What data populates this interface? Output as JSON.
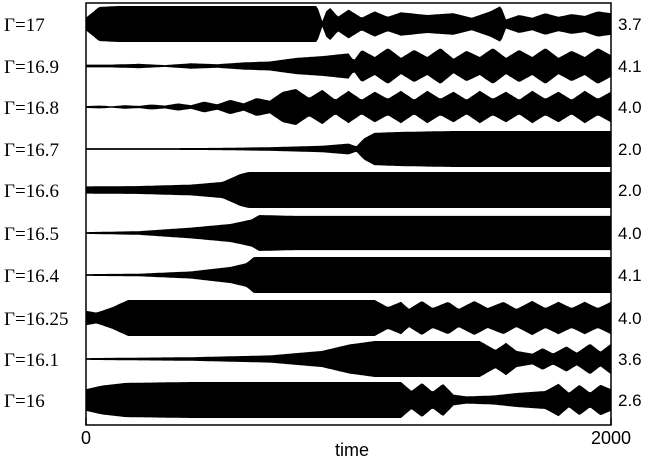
{
  "chart_data": {
    "type": "area",
    "xlabel": "time",
    "x_ticks": [
      "0",
      "2000"
    ],
    "xlim": [
      0,
      2000
    ],
    "grid": false,
    "series": [
      {
        "name": "Γ=17",
        "right_value": "3.7",
        "profile": [
          [
            0,
            0.35
          ],
          [
            50,
            0.95
          ],
          [
            120,
            1
          ],
          [
            300,
            1
          ],
          [
            600,
            1
          ],
          [
            780,
            1
          ],
          [
            880,
            1
          ],
          [
            890,
            0.6
          ],
          [
            900,
            0.15
          ],
          [
            915,
            0.7
          ],
          [
            930,
            0.9
          ],
          [
            960,
            0.4
          ],
          [
            1000,
            0.8
          ],
          [
            1050,
            0.35
          ],
          [
            1100,
            0.7
          ],
          [
            1150,
            0.4
          ],
          [
            1200,
            0.65
          ],
          [
            1300,
            0.5
          ],
          [
            1400,
            0.6
          ],
          [
            1470,
            0.35
          ],
          [
            1540,
            0.7
          ],
          [
            1580,
            1
          ],
          [
            1600,
            0.25
          ],
          [
            1650,
            0.5
          ],
          [
            1700,
            0.35
          ],
          [
            1750,
            0.6
          ],
          [
            1800,
            0.4
          ],
          [
            1850,
            0.55
          ],
          [
            1900,
            0.45
          ],
          [
            1950,
            0.7
          ],
          [
            2000,
            0.6
          ]
        ]
      },
      {
        "name": "Γ=16.9",
        "right_value": "4.1",
        "profile": [
          [
            0,
            0.08
          ],
          [
            100,
            0.08
          ],
          [
            200,
            0.12
          ],
          [
            300,
            0.05
          ],
          [
            400,
            0.15
          ],
          [
            500,
            0.1
          ],
          [
            600,
            0.2
          ],
          [
            700,
            0.25
          ],
          [
            800,
            0.45
          ],
          [
            900,
            0.55
          ],
          [
            1000,
            0.7
          ],
          [
            1020,
            0.3
          ],
          [
            1050,
            0.9
          ],
          [
            1100,
            0.5
          ],
          [
            1150,
            1
          ],
          [
            1200,
            0.45
          ],
          [
            1250,
            0.9
          ],
          [
            1300,
            0.5
          ],
          [
            1350,
            1
          ],
          [
            1400,
            0.4
          ],
          [
            1450,
            0.85
          ],
          [
            1500,
            0.5
          ],
          [
            1550,
            1
          ],
          [
            1600,
            0.45
          ],
          [
            1650,
            0.9
          ],
          [
            1700,
            0.5
          ],
          [
            1750,
            1
          ],
          [
            1800,
            0.45
          ],
          [
            1850,
            0.85
          ],
          [
            1900,
            0.5
          ],
          [
            1950,
            1
          ],
          [
            2000,
            0.6
          ]
        ]
      },
      {
        "name": "Γ=16.8",
        "right_value": "4.0",
        "profile": [
          [
            0,
            0.05
          ],
          [
            50,
            0.08
          ],
          [
            100,
            0.04
          ],
          [
            150,
            0.1
          ],
          [
            200,
            0.06
          ],
          [
            250,
            0.14
          ],
          [
            300,
            0.08
          ],
          [
            350,
            0.2
          ],
          [
            400,
            0.1
          ],
          [
            450,
            0.3
          ],
          [
            500,
            0.15
          ],
          [
            550,
            0.4
          ],
          [
            600,
            0.2
          ],
          [
            650,
            0.5
          ],
          [
            700,
            0.35
          ],
          [
            750,
            0.85
          ],
          [
            800,
            1
          ],
          [
            850,
            0.5
          ],
          [
            900,
            0.95
          ],
          [
            950,
            0.4
          ],
          [
            1000,
            0.9
          ],
          [
            1050,
            0.4
          ],
          [
            1100,
            0.85
          ],
          [
            1150,
            0.45
          ],
          [
            1200,
            0.9
          ],
          [
            1250,
            0.4
          ],
          [
            1300,
            0.9
          ],
          [
            1350,
            0.45
          ],
          [
            1400,
            0.85
          ],
          [
            1450,
            0.4
          ],
          [
            1500,
            0.9
          ],
          [
            1550,
            0.45
          ],
          [
            1600,
            0.85
          ],
          [
            1650,
            0.4
          ],
          [
            1700,
            0.9
          ],
          [
            1750,
            0.45
          ],
          [
            1800,
            0.85
          ],
          [
            1850,
            0.4
          ],
          [
            1900,
            0.9
          ],
          [
            1950,
            0.45
          ],
          [
            2000,
            0.85
          ]
        ]
      },
      {
        "name": "Γ=16.7",
        "right_value": "2.0",
        "profile": [
          [
            0,
            0.05
          ],
          [
            300,
            0.05
          ],
          [
            500,
            0.06
          ],
          [
            700,
            0.1
          ],
          [
            900,
            0.18
          ],
          [
            1000,
            0.3
          ],
          [
            1030,
            0.15
          ],
          [
            1060,
            0.6
          ],
          [
            1100,
            0.9
          ],
          [
            1200,
            0.95
          ],
          [
            1400,
            1
          ],
          [
            1600,
            1
          ],
          [
            1800,
            1
          ],
          [
            2000,
            1
          ]
        ]
      },
      {
        "name": "Γ=16.6",
        "right_value": "2.0",
        "profile": [
          [
            0,
            0.2
          ],
          [
            200,
            0.22
          ],
          [
            400,
            0.3
          ],
          [
            520,
            0.45
          ],
          [
            590,
            0.9
          ],
          [
            620,
            1
          ],
          [
            800,
            1
          ],
          [
            1000,
            1
          ],
          [
            1200,
            1
          ],
          [
            1400,
            1
          ],
          [
            1600,
            1
          ],
          [
            1800,
            1
          ],
          [
            2000,
            1
          ]
        ]
      },
      {
        "name": "Γ=16.5",
        "right_value": "4.0",
        "profile": [
          [
            0,
            0.05
          ],
          [
            200,
            0.1
          ],
          [
            400,
            0.3
          ],
          [
            550,
            0.5
          ],
          [
            630,
            0.75
          ],
          [
            660,
            1
          ],
          [
            800,
            0.95
          ],
          [
            1000,
            0.95
          ],
          [
            1200,
            0.95
          ],
          [
            1400,
            0.95
          ],
          [
            1600,
            0.95
          ],
          [
            1800,
            0.95
          ],
          [
            2000,
            0.95
          ]
        ]
      },
      {
        "name": "Γ=16.4",
        "right_value": "4.1",
        "profile": [
          [
            0,
            0.05
          ],
          [
            200,
            0.07
          ],
          [
            400,
            0.2
          ],
          [
            550,
            0.45
          ],
          [
            610,
            0.65
          ],
          [
            640,
            1
          ],
          [
            660,
            1
          ],
          [
            800,
            1
          ],
          [
            1000,
            1
          ],
          [
            1200,
            1
          ],
          [
            1400,
            1
          ],
          [
            1600,
            1
          ],
          [
            1800,
            1
          ],
          [
            2000,
            1
          ]
        ]
      },
      {
        "name": "Γ=16.25",
        "right_value": "4.0",
        "profile": [
          [
            0,
            0.4
          ],
          [
            40,
            0.3
          ],
          [
            100,
            0.6
          ],
          [
            160,
            1
          ],
          [
            400,
            1
          ],
          [
            800,
            1
          ],
          [
            1100,
            1
          ],
          [
            1150,
            0.6
          ],
          [
            1200,
            0.9
          ],
          [
            1230,
            0.5
          ],
          [
            1280,
            0.95
          ],
          [
            1320,
            0.55
          ],
          [
            1380,
            0.9
          ],
          [
            1420,
            0.5
          ],
          [
            1480,
            0.95
          ],
          [
            1530,
            0.55
          ],
          [
            1590,
            0.9
          ],
          [
            1640,
            0.5
          ],
          [
            1700,
            0.95
          ],
          [
            1750,
            0.55
          ],
          [
            1800,
            0.9
          ],
          [
            1850,
            0.55
          ],
          [
            1900,
            0.9
          ],
          [
            1950,
            0.55
          ],
          [
            2000,
            0.9
          ]
        ]
      },
      {
        "name": "Γ=16.1",
        "right_value": "3.6",
        "profile": [
          [
            0,
            0.05
          ],
          [
            400,
            0.1
          ],
          [
            700,
            0.2
          ],
          [
            900,
            0.45
          ],
          [
            1000,
            0.8
          ],
          [
            1100,
            1
          ],
          [
            1300,
            1
          ],
          [
            1500,
            1
          ],
          [
            1560,
            0.5
          ],
          [
            1600,
            0.9
          ],
          [
            1640,
            0.45
          ],
          [
            1700,
            0.3
          ],
          [
            1740,
            0.6
          ],
          [
            1780,
            0.3
          ],
          [
            1830,
            0.7
          ],
          [
            1870,
            0.35
          ],
          [
            1920,
            0.85
          ],
          [
            1960,
            0.4
          ],
          [
            2000,
            0.85
          ]
        ]
      },
      {
        "name": "Γ=16",
        "right_value": "2.6",
        "profile": [
          [
            0,
            0.6
          ],
          [
            60,
            0.8
          ],
          [
            150,
            0.95
          ],
          [
            400,
            1
          ],
          [
            800,
            1
          ],
          [
            1200,
            1
          ],
          [
            1240,
            0.5
          ],
          [
            1280,
            0.95
          ],
          [
            1320,
            0.45
          ],
          [
            1360,
            0.9
          ],
          [
            1400,
            0.3
          ],
          [
            1450,
            0.2
          ],
          [
            1550,
            0.25
          ],
          [
            1650,
            0.4
          ],
          [
            1750,
            0.5
          ],
          [
            1800,
            0.9
          ],
          [
            1840,
            0.4
          ],
          [
            1880,
            0.85
          ],
          [
            1920,
            0.4
          ],
          [
            1960,
            0.85
          ],
          [
            2000,
            0.6
          ]
        ]
      }
    ]
  }
}
